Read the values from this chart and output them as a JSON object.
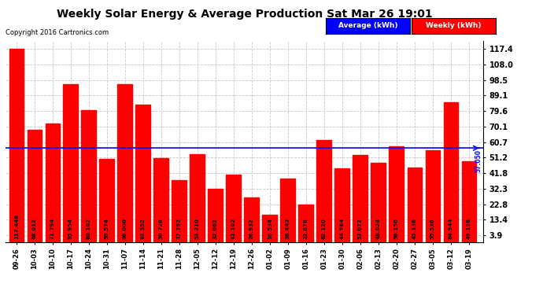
{
  "title": "Weekly Solar Energy & Average Production Sat Mar 26 19:01",
  "copyright": "Copyright 2016 Cartronics.com",
  "categories": [
    "09-26",
    "10-03",
    "10-10",
    "10-17",
    "10-24",
    "10-31",
    "11-07",
    "11-14",
    "11-21",
    "11-28",
    "12-05",
    "12-12",
    "12-19",
    "12-26",
    "01-02",
    "01-09",
    "01-16",
    "01-23",
    "01-30",
    "02-06",
    "02-13",
    "02-20",
    "02-27",
    "03-05",
    "03-12",
    "03-19"
  ],
  "values": [
    117.448,
    68.012,
    71.794,
    95.954,
    80.102,
    50.574,
    96.0,
    83.552,
    50.728,
    37.792,
    53.21,
    32.062,
    41.102,
    26.932,
    16.534,
    38.442,
    22.878,
    62.12,
    44.964,
    53.072,
    48.024,
    58.15,
    45.136,
    55.536,
    84.944,
    49.128
  ],
  "bar_color": "#ff0000",
  "average": 57.05,
  "average_color": "#0000ff",
  "yticks": [
    3.9,
    13.4,
    22.8,
    32.3,
    41.8,
    51.2,
    60.7,
    70.1,
    79.6,
    89.1,
    98.5,
    108.0,
    117.4
  ],
  "ylim": [
    0,
    122
  ],
  "background_color": "#ffffff",
  "plot_bg_color": "#ffffff",
  "grid_color": "#c8c8c8",
  "bar_value_color": "#000000",
  "bar_label_fontsize": 5.0,
  "average_label": "Average (kWh)",
  "weekly_label": "Weekly (kWh)",
  "avg_label_bg": "#0000ff",
  "weekly_label_bg": "#ff0000",
  "avg_annotation": "57.050",
  "title_fontsize": 10,
  "copyright_fontsize": 6,
  "xtick_fontsize": 6,
  "ytick_fontsize": 7
}
